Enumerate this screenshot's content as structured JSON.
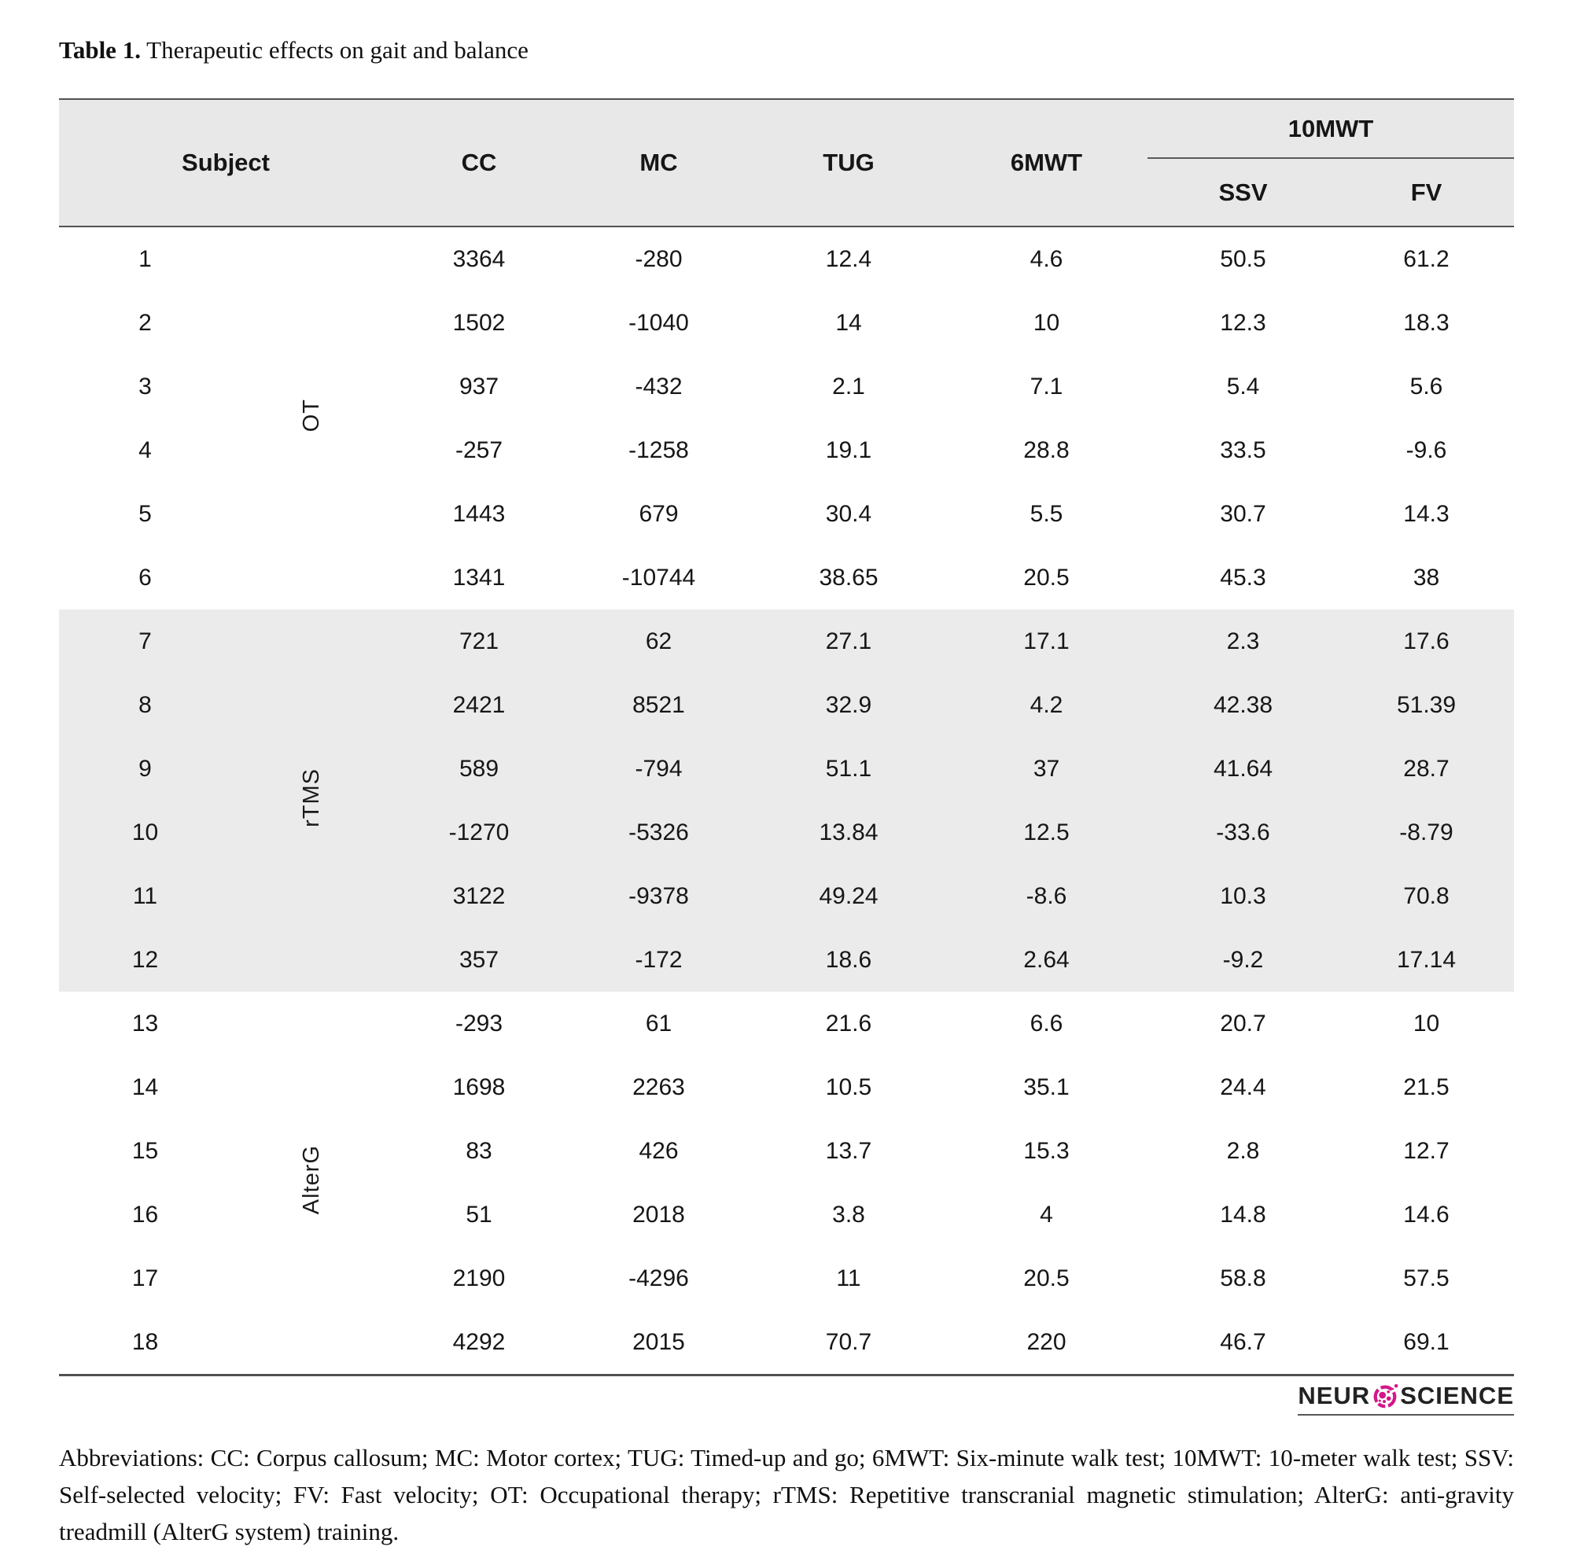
{
  "page": {
    "title_label": "Table 1.",
    "title_text": " Therapeutic effects on gait and balance"
  },
  "table": {
    "headers": {
      "subject": "Subject",
      "cc": "CC",
      "mc": "MC",
      "tug": "TUG",
      "six_mwt": "6MWT",
      "ten_mwt": "10MWT",
      "ssv": "SSV",
      "fv": "FV"
    },
    "groups": [
      {
        "label": "OT",
        "shaded": false,
        "rows": [
          [
            "1",
            "3364",
            "-280",
            "12.4",
            "4.6",
            "50.5",
            "61.2"
          ],
          [
            "2",
            "1502",
            "-1040",
            "14",
            "10",
            "12.3",
            "18.3"
          ],
          [
            "3",
            "937",
            "-432",
            "2.1",
            "7.1",
            "5.4",
            "5.6"
          ],
          [
            "4",
            "-257",
            "-1258",
            "19.1",
            "28.8",
            "33.5",
            "-9.6"
          ],
          [
            "5",
            "1443",
            "679",
            "30.4",
            "5.5",
            "30.7",
            "14.3"
          ],
          [
            "6",
            "1341",
            "-10744",
            "38.65",
            "20.5",
            "45.3",
            "38"
          ]
        ]
      },
      {
        "label": "rTMS",
        "shaded": true,
        "rows": [
          [
            "7",
            "721",
            "62",
            "27.1",
            "17.1",
            "2.3",
            "17.6"
          ],
          [
            "8",
            "2421",
            "8521",
            "32.9",
            "4.2",
            "42.38",
            "51.39"
          ],
          [
            "9",
            "589",
            "-794",
            "51.1",
            "37",
            "41.64",
            "28.7"
          ],
          [
            "10",
            "-1270",
            "-5326",
            "13.84",
            "12.5",
            "-33.6",
            "-8.79"
          ],
          [
            "11",
            "3122",
            "-9378",
            "49.24",
            "-8.6",
            "10.3",
            "70.8"
          ],
          [
            "12",
            "357",
            "-172",
            "18.6",
            "2.64",
            "-9.2",
            "17.14"
          ]
        ]
      },
      {
        "label": "AlterG",
        "shaded": false,
        "rows": [
          [
            "13",
            "-293",
            "61",
            "21.6",
            "6.6",
            "20.7",
            "10"
          ],
          [
            "14",
            "1698",
            "2263",
            "10.5",
            "35.1",
            "24.4",
            "21.5"
          ],
          [
            "15",
            "83",
            "426",
            "13.7",
            "15.3",
            "2.8",
            "12.7"
          ],
          [
            "16",
            "51",
            "2018",
            "3.8",
            "4",
            "14.8",
            "14.6"
          ],
          [
            "17",
            "2190",
            "-4296",
            "11",
            "20.5",
            "58.8",
            "57.5"
          ],
          [
            "18",
            "4292",
            "2015",
            "70.7",
            "220",
            "46.7",
            "69.1"
          ]
        ]
      }
    ]
  },
  "logo": {
    "text_left": "NEUR",
    "text_right": "SCIENCE",
    "accent_color": "#d4178a"
  },
  "footnote": {
    "text": "Abbreviations: CC: Corpus callosum; MC: Motor cortex; TUG: Timed-up and go; 6MWT: Six-minute walk test; 10MWT: 10-meter walk test; SSV: Self-selected velocity; FV: Fast velocity; OT: Occupational therapy; rTMS: Repetitive transcranial magnetic stimulation; AlterG: anti-gravity treadmill (AlterG system) training."
  }
}
